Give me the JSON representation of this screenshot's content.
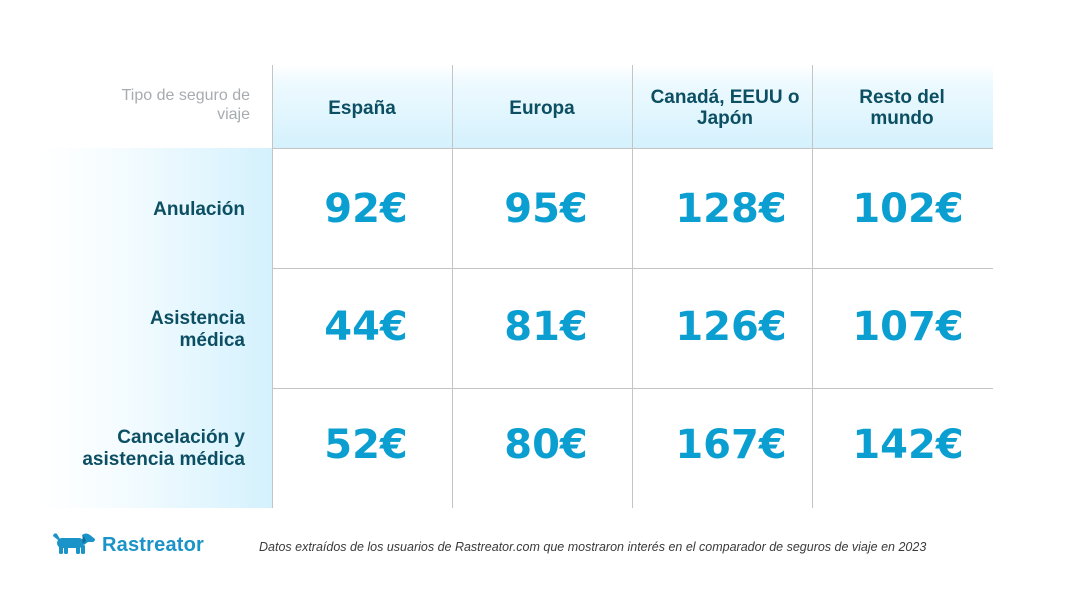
{
  "table": {
    "corner_label": "Tipo de seguro de viaje",
    "columns": [
      "España",
      "Europa",
      "Canadá, EEUU o Japón",
      "Resto del mundo"
    ],
    "rows": [
      {
        "label": "Anulación",
        "values": [
          "92€",
          "95€",
          "128€",
          "102€"
        ]
      },
      {
        "label": "Asistencia médica",
        "values": [
          "44€",
          "81€",
          "126€",
          "107€"
        ]
      },
      {
        "label": "Cancelación y asistencia médica",
        "values": [
          "52€",
          "80€",
          "167€",
          "142€"
        ]
      }
    ]
  },
  "branding": {
    "logo_icon": "dachshund-dog-icon",
    "logo_text": "Rastreator"
  },
  "footnote": "Datos extraídos de los usuarios de Rastreator.com que mostraron interés en el comparador de seguros de viaje en 2023",
  "colors": {
    "accent": "#0b9fd1",
    "heading": "#0c4f63",
    "header_tint": "#d4f1fd",
    "muted": "#a7acb0"
  }
}
